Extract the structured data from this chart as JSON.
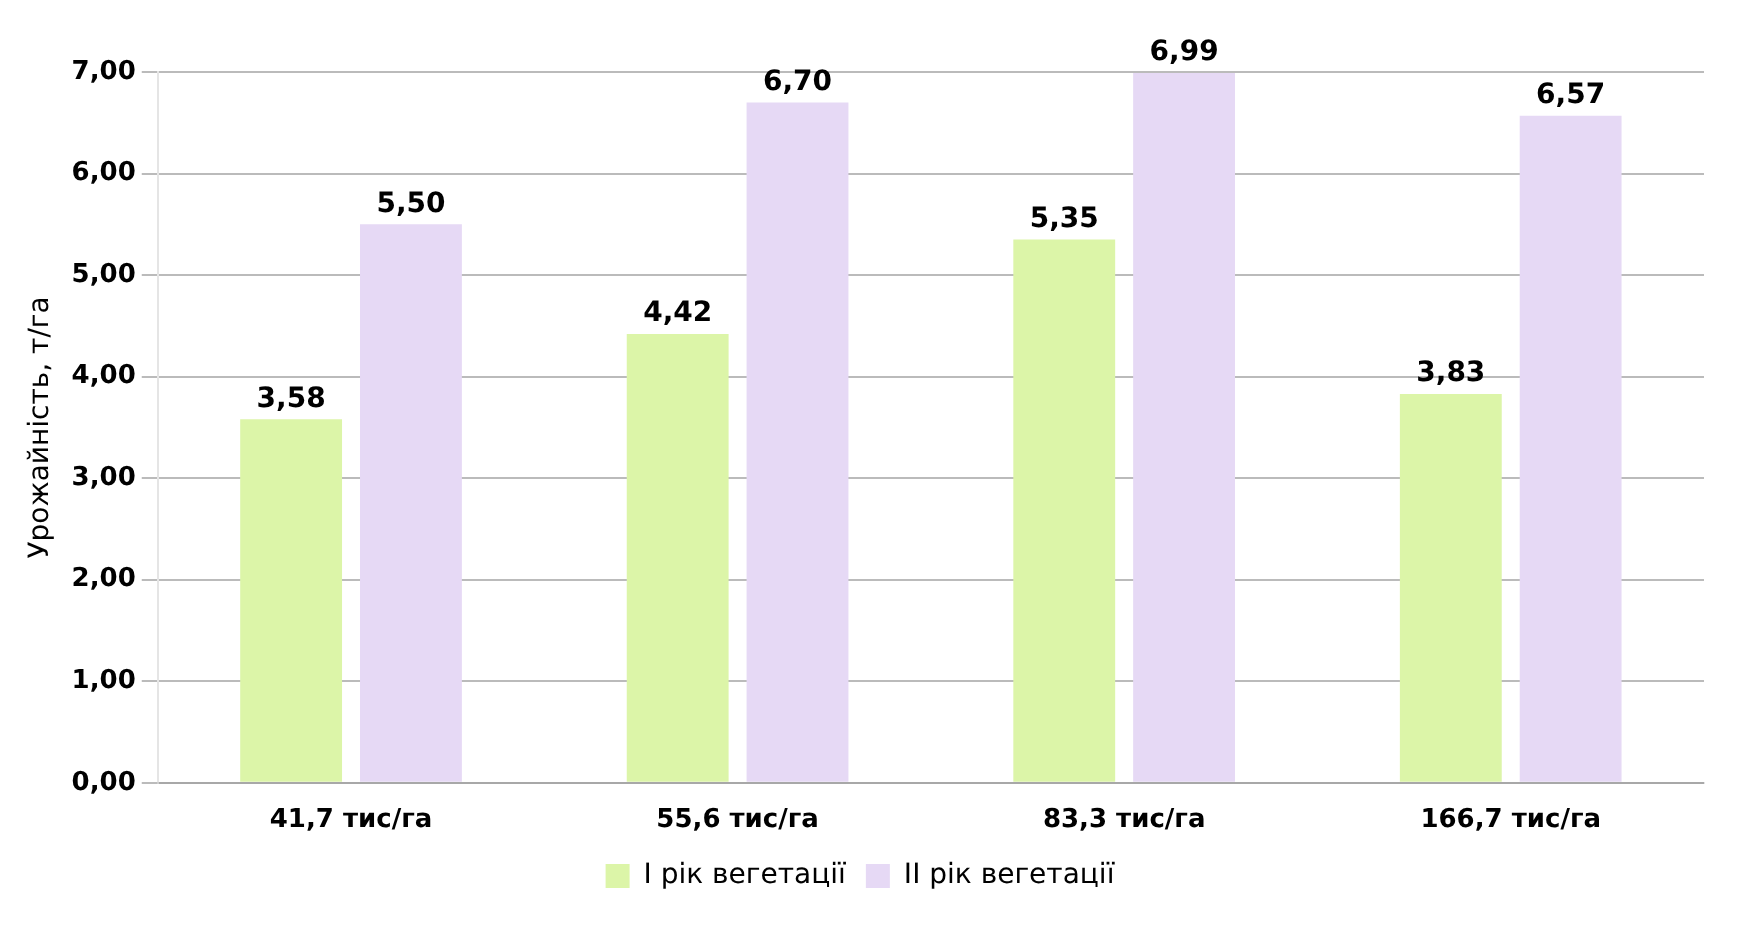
{
  "chart_data": {
    "type": "bar",
    "ylabel": "Урожайність, т/га",
    "categories": [
      "41,7 тис/га",
      "55,6 тис/га",
      "83,3 тис/га",
      "166,7 тис/га"
    ],
    "series": [
      {
        "name": "I рік вегетації",
        "color": "#dcf5a8",
        "values": [
          3.58,
          4.42,
          5.35,
          3.83
        ],
        "value_labels": [
          "3,58",
          "4,42",
          "5,35",
          "3,83"
        ]
      },
      {
        "name": "II рік вегетації",
        "color": "#e6d9f5",
        "values": [
          5.5,
          6.7,
          6.99,
          6.57
        ],
        "value_labels": [
          "5,50",
          "6,70",
          "6,99",
          "6,57"
        ]
      }
    ],
    "ylim": [
      0,
      7
    ],
    "yticks": [
      {
        "value": 0,
        "label": "0,00"
      },
      {
        "value": 1,
        "label": "1,00"
      },
      {
        "value": 2,
        "label": "2,00"
      },
      {
        "value": 3,
        "label": "3,00"
      },
      {
        "value": 4,
        "label": "4,00"
      },
      {
        "value": 5,
        "label": "5,00"
      },
      {
        "value": 6,
        "label": "6,00"
      },
      {
        "value": 7,
        "label": "7,00"
      }
    ],
    "grid": "y",
    "legend": "bottom"
  }
}
